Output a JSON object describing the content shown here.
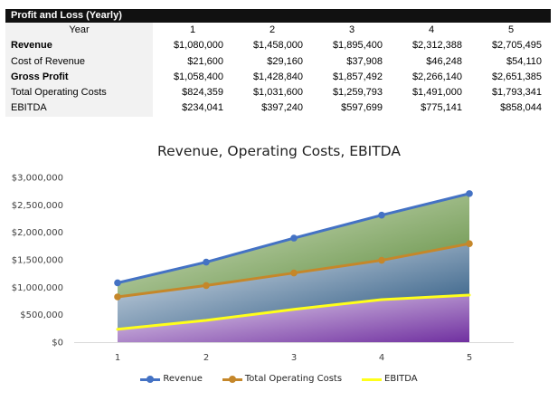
{
  "table": {
    "title": "Profit and Loss (Yearly)",
    "header_label": "Year",
    "years": [
      "1",
      "2",
      "3",
      "4",
      "5"
    ],
    "rows": [
      {
        "label": "Revenue",
        "bold": true,
        "values": [
          "$1,080,000",
          "$1,458,000",
          "$1,895,400",
          "$2,312,388",
          "$2,705,495"
        ]
      },
      {
        "label": "Cost of Revenue",
        "bold": false,
        "values": [
          "$21,600",
          "$29,160",
          "$37,908",
          "$46,248",
          "$54,110"
        ]
      },
      {
        "label": "Gross Profit",
        "bold": true,
        "values": [
          "$1,058,400",
          "$1,428,840",
          "$1,857,492",
          "$2,266,140",
          "$2,651,385"
        ]
      },
      {
        "label": "Total Operating Costs",
        "bold": false,
        "values": [
          "$824,359",
          "$1,031,600",
          "$1,259,793",
          "$1,491,000",
          "$1,793,341"
        ]
      },
      {
        "label": "EBITDA",
        "bold": false,
        "values": [
          "$234,041",
          "$397,240",
          "$597,699",
          "$775,141",
          "$858,044"
        ]
      }
    ]
  },
  "chart_data": {
    "type": "area",
    "title": "Revenue, Operating Costs, EBITDA",
    "categories": [
      "1",
      "2",
      "3",
      "4",
      "5"
    ],
    "ylim": [
      0,
      3000000
    ],
    "y_ticks": [
      0,
      500000,
      1000000,
      1500000,
      2000000,
      2500000,
      3000000
    ],
    "y_tick_labels": [
      "$0",
      "$500,000",
      "$1,000,000",
      "$1,500,000",
      "$2,000,000",
      "$2,500,000",
      "$3,000,000"
    ],
    "grid": false,
    "legend_position": "bottom",
    "series": [
      {
        "name": "Revenue",
        "values": [
          1080000,
          1458000,
          1895400,
          2312388,
          2705495
        ],
        "color": "#4472C4",
        "markers": true,
        "fill_from": "#dde8cf",
        "fill_to": "#5b8a3a"
      },
      {
        "name": "Total Operating Costs",
        "values": [
          824359,
          1031600,
          1259793,
          1491000,
          1793341
        ],
        "color": "#C5872A",
        "markers": true,
        "fill_from": "#e6ecf3",
        "fill_to": "#1f4e79"
      },
      {
        "name": "EBITDA",
        "values": [
          234041,
          397240,
          597699,
          775141,
          858044
        ],
        "color": "#FFFF1A",
        "markers": false,
        "fill_from": "#e9ddf1",
        "fill_to": "#7030a0"
      }
    ]
  }
}
